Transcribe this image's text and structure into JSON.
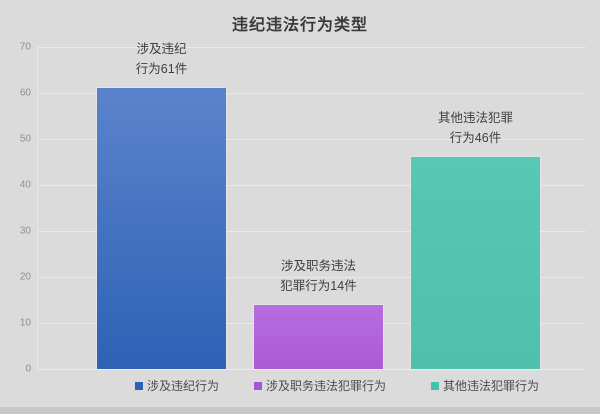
{
  "title": "违纪违法行为类型",
  "colors": {
    "background": "#dbdbdb",
    "gridline": "#e7e9ee",
    "axis_text": "#8f8f8f",
    "label_text": "#3f3f3f",
    "title_text": "#3a3a3a",
    "bottom_strip": "#c8c8c8"
  },
  "chart_data": {
    "type": "bar",
    "title": "违纪违法行为类型",
    "categories": [
      "涉及违纪行为",
      "涉及职务违法犯罪行为",
      "其他违法犯罪行为"
    ],
    "values": [
      61,
      14,
      46
    ],
    "bar_labels": [
      [
        "涉及违纪",
        "行为61件"
      ],
      [
        "涉及职务违法",
        "犯罪行为14件"
      ],
      [
        "其他违法犯罪",
        "行为46件"
      ]
    ],
    "bar_gradients": [
      [
        "#5b83cc",
        "#2e62b5"
      ],
      [
        "#b86ce1",
        "#ab5bd5"
      ],
      [
        "#56c8b4",
        "#4fc0ab"
      ]
    ],
    "legend": [
      {
        "label": "涉及违纪行为",
        "color": "#2e5fb8"
      },
      {
        "label": "涉及职务违法犯罪行为",
        "color": "#a854d6"
      },
      {
        "label": "其他违法犯罪行为",
        "color": "#45c0ab"
      }
    ],
    "xlabel": "",
    "ylabel": "",
    "ylim": [
      0,
      70
    ],
    "yticks": [
      0,
      10,
      20,
      30,
      40,
      50,
      60,
      70
    ],
    "grid": true,
    "legend_position": "bottom"
  }
}
